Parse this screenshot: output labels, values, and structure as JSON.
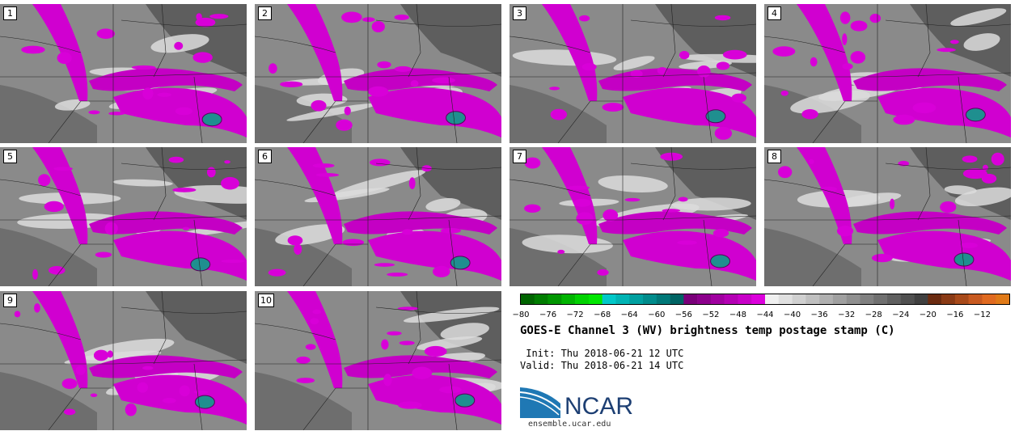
{
  "panels": [
    {
      "label": "1"
    },
    {
      "label": "2"
    },
    {
      "label": "3"
    },
    {
      "label": "4"
    },
    {
      "label": "5"
    },
    {
      "label": "6"
    },
    {
      "label": "7"
    },
    {
      "label": "8"
    },
    {
      "label": "9"
    },
    {
      "label": "10"
    }
  ],
  "colorbar": {
    "ticks": [
      "−80",
      "−76",
      "−72",
      "−68",
      "−64",
      "−60",
      "−56",
      "−52",
      "−48",
      "−44",
      "−40",
      "−36",
      "−32",
      "−28",
      "−24",
      "−20",
      "−16",
      "−12"
    ],
    "colors": [
      "#006400",
      "#007d00",
      "#009600",
      "#00b400",
      "#00d200",
      "#00e600",
      "#00c8c8",
      "#00b4b4",
      "#00a0a0",
      "#008c8c",
      "#007878",
      "#006464",
      "#7a007a",
      "#8c008c",
      "#a000a0",
      "#b400b4",
      "#c800c8",
      "#dc00dc",
      "#f0f0f0",
      "#e0e0e0",
      "#d0d0d0",
      "#c0c0c0",
      "#b0b0b0",
      "#a0a0a0",
      "#909090",
      "#808080",
      "#707070",
      "#606060",
      "#505050",
      "#404040",
      "#6b2b10",
      "#8a3a15",
      "#a84a1a",
      "#c85a20",
      "#e06a20",
      "#e07a18"
    ]
  },
  "title": "GOES-E Channel 3 (WV) brightness temp postage stamp (C)",
  "init": " Init: Thu 2018-06-21 12 UTC",
  "valid": "Valid: Thu 2018-06-21 14 UTC",
  "logo": {
    "text": "NCAR",
    "url": "ensemble.ucar.edu"
  }
}
